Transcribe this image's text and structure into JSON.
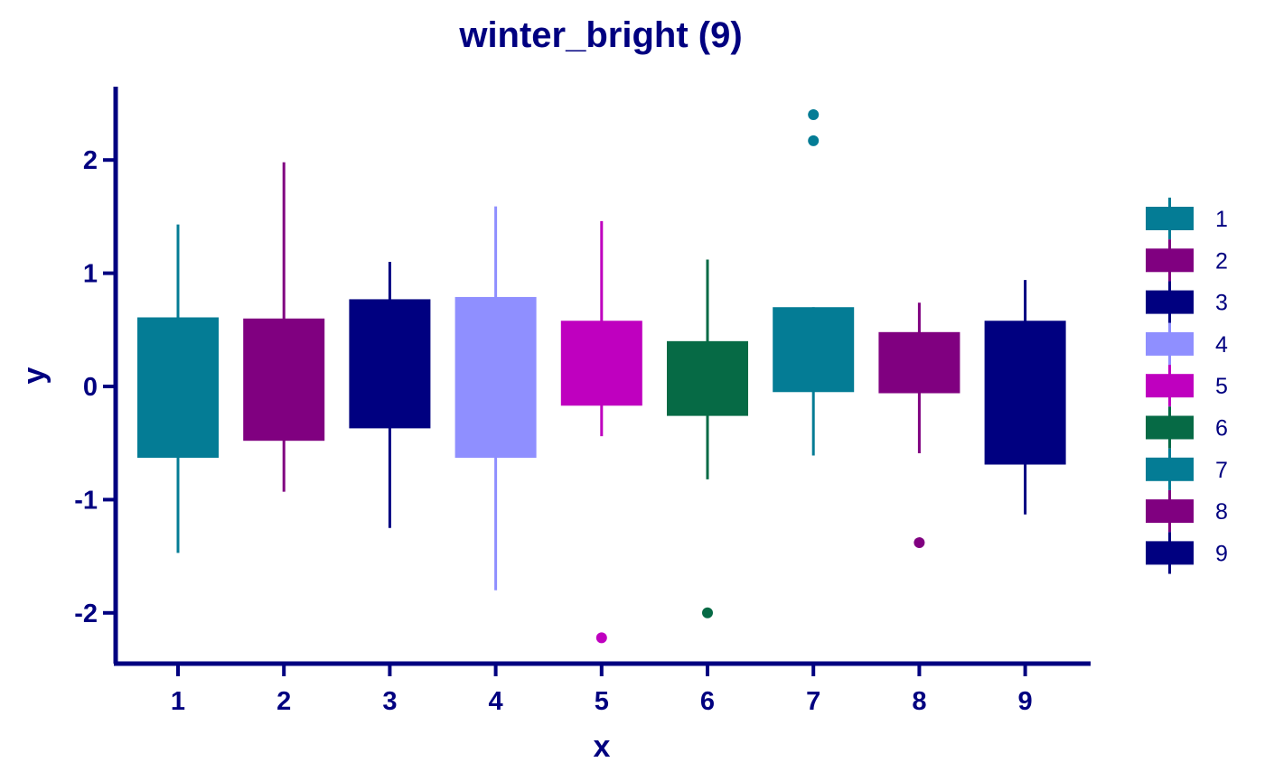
{
  "chart_data": {
    "type": "box",
    "title": "winter_bright (9)",
    "xlabel": "x",
    "ylabel": "y",
    "ylim": [
      -2.4,
      2.65
    ],
    "yticks": [
      -2,
      -1,
      0,
      1,
      2
    ],
    "grid": false,
    "legend_placement": "right",
    "text_color": "#000080",
    "categories": [
      "1",
      "2",
      "3",
      "4",
      "5",
      "6",
      "7",
      "8",
      "9"
    ],
    "boxes": [
      {
        "name": "1",
        "color": "#047C95",
        "whisker_low": -1.47,
        "q1": -0.63,
        "q3": 0.61,
        "whisker_high": 1.43,
        "outliers": []
      },
      {
        "name": "2",
        "color": "#800080",
        "whisker_low": -0.93,
        "q1": -0.48,
        "q3": 0.6,
        "whisker_high": 1.98,
        "outliers": []
      },
      {
        "name": "3",
        "color": "#000080",
        "whisker_low": -1.25,
        "q1": -0.37,
        "q3": 0.77,
        "whisker_high": 1.1,
        "outliers": []
      },
      {
        "name": "4",
        "color": "#8F8FFF",
        "whisker_low": -1.8,
        "q1": -0.63,
        "q3": 0.79,
        "whisker_high": 1.59,
        "outliers": []
      },
      {
        "name": "5",
        "color": "#BF00BF",
        "whisker_low": -0.44,
        "q1": -0.17,
        "q3": 0.58,
        "whisker_high": 1.46,
        "outliers": [
          -2.22
        ]
      },
      {
        "name": "6",
        "color": "#066A45",
        "whisker_low": -0.82,
        "q1": -0.26,
        "q3": 0.4,
        "whisker_high": 1.12,
        "outliers": [
          -2.0
        ]
      },
      {
        "name": "7",
        "color": "#047C95",
        "whisker_low": -0.61,
        "q1": -0.05,
        "q3": 0.7,
        "whisker_high": 0.7,
        "outliers": [
          2.17,
          2.4
        ]
      },
      {
        "name": "8",
        "color": "#800080",
        "whisker_low": -0.59,
        "q1": -0.06,
        "q3": 0.48,
        "whisker_high": 0.74,
        "outliers": [
          -1.38
        ]
      },
      {
        "name": "9",
        "color": "#000080",
        "whisker_low": -1.13,
        "q1": -0.69,
        "q3": 0.58,
        "whisker_high": 0.94,
        "outliers": []
      }
    ]
  }
}
